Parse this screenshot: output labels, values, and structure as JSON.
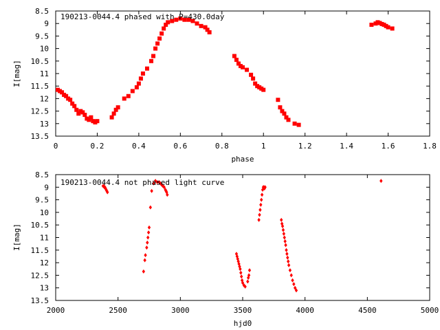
{
  "chart_data": [
    {
      "type": "scatter",
      "title": "190213-0044.4 phased with P=430.0day",
      "xlabel": "phase",
      "ylabel": "I[mag]",
      "xlim": [
        0,
        1.8
      ],
      "ylim": [
        13.5,
        8.5
      ],
      "y_inverted": true,
      "xticks": [
        "0",
        "0.2",
        "0.4",
        "0.6",
        "0.8",
        "1",
        "1.2",
        "1.4",
        "1.6",
        "1.8"
      ],
      "yticks": [
        "8.5",
        "9",
        "9.5",
        "10",
        "10.5",
        "11",
        "11.5",
        "12",
        "12.5",
        "13",
        "13.5"
      ],
      "xtick_values": [
        0,
        0.2,
        0.4,
        0.6,
        0.8,
        1.0,
        1.2,
        1.4,
        1.6,
        1.8
      ],
      "ytick_values": [
        8.5,
        9,
        9.5,
        10,
        10.5,
        11,
        11.5,
        12,
        12.5,
        13,
        13.5
      ],
      "marker_color": "#ff0000",
      "marker": "filled-square",
      "series": [
        {
          "x": [
            0.01,
            0.02,
            0.03,
            0.04,
            0.05,
            0.06,
            0.07,
            0.08,
            0.09,
            0.1,
            0.11,
            0.12,
            0.13,
            0.14,
            0.15,
            0.16,
            0.17,
            0.18,
            0.19,
            0.2,
            0.27,
            0.28,
            0.29,
            0.3,
            0.33,
            0.35,
            0.37,
            0.39,
            0.4,
            0.41,
            0.42,
            0.44,
            0.46,
            0.47,
            0.48,
            0.49,
            0.5,
            0.51,
            0.52,
            0.53,
            0.54,
            0.56,
            0.58,
            0.6,
            0.62,
            0.64,
            0.66,
            0.68,
            0.7,
            0.72,
            0.73,
            0.74,
            0.86,
            0.87,
            0.88,
            0.89,
            0.9,
            0.92,
            0.94,
            0.95,
            0.96,
            0.97,
            0.98,
            0.99,
            1.0,
            1.07,
            1.08,
            1.09,
            1.1,
            1.11,
            1.12,
            1.15,
            1.17,
            1.52,
            1.54,
            1.55,
            1.56,
            1.57,
            1.58,
            1.59,
            1.6,
            1.62
          ],
          "y": [
            11.65,
            11.7,
            11.75,
            11.85,
            11.9,
            12.0,
            12.05,
            12.2,
            12.3,
            12.45,
            12.6,
            12.5,
            12.55,
            12.65,
            12.8,
            12.85,
            12.75,
            12.9,
            12.95,
            12.9,
            12.75,
            12.6,
            12.45,
            12.35,
            12.0,
            11.9,
            11.7,
            11.55,
            11.4,
            11.2,
            11.0,
            10.8,
            10.5,
            10.3,
            10.0,
            9.8,
            9.6,
            9.4,
            9.2,
            9.05,
            8.95,
            8.9,
            8.85,
            8.8,
            8.85,
            8.85,
            8.9,
            9.0,
            9.1,
            9.15,
            9.25,
            9.35,
            10.3,
            10.45,
            10.6,
            10.7,
            10.75,
            10.85,
            11.05,
            11.2,
            11.4,
            11.5,
            11.55,
            11.6,
            11.65,
            12.05,
            12.35,
            12.5,
            12.6,
            12.75,
            12.85,
            13.0,
            13.05,
            9.05,
            9.0,
            8.95,
            8.98,
            9.02,
            9.05,
            9.1,
            9.15,
            9.2
          ]
        }
      ]
    },
    {
      "type": "scatter",
      "title": "190213-0044.4 not phased light curve",
      "xlabel": "hjd0",
      "ylabel": "I[mag]",
      "xlim": [
        2000,
        5000
      ],
      "ylim": [
        13.5,
        8.5
      ],
      "y_inverted": true,
      "xticks": [
        "2000",
        "2500",
        "3000",
        "3500",
        "4000",
        "4500",
        "5000"
      ],
      "yticks": [
        "8.5",
        "9",
        "9.5",
        "10",
        "10.5",
        "11",
        "11.5",
        "12",
        "12.5",
        "13",
        "13.5"
      ],
      "xtick_values": [
        2000,
        2500,
        3000,
        3500,
        4000,
        4500,
        5000
      ],
      "ytick_values": [
        8.5,
        9,
        9.5,
        10,
        10.5,
        11,
        11.5,
        12,
        12.5,
        13,
        13.5
      ],
      "marker_color": "#ff0000",
      "marker": "filled-diamond",
      "series": [
        {
          "x": [
            2380,
            2385,
            2390,
            2395,
            2400,
            2405,
            2410,
            2415,
            2705,
            2715,
            2720,
            2730,
            2735,
            2740,
            2745,
            2750,
            2760,
            2770,
            2785,
            2800,
            2815,
            2830,
            2840,
            2850,
            2860,
            2870,
            2880,
            2885,
            2890,
            2895,
            3450,
            3455,
            3460,
            3465,
            3470,
            3475,
            3480,
            3485,
            3490,
            3495,
            3500,
            3510,
            3520,
            3540,
            3545,
            3550,
            3555,
            3630,
            3635,
            3640,
            3645,
            3650,
            3655,
            3660,
            3665,
            3670,
            3675,
            3680,
            3810,
            3815,
            3820,
            3825,
            3830,
            3835,
            3840,
            3845,
            3850,
            3855,
            3860,
            3865,
            3870,
            3880,
            3890,
            3900,
            3910,
            3920,
            3930,
            4610
          ],
          "y": [
            8.95,
            8.95,
            9.0,
            9.0,
            9.05,
            9.1,
            9.15,
            9.2,
            12.35,
            11.9,
            11.7,
            11.4,
            11.2,
            11.0,
            10.8,
            10.6,
            9.8,
            9.15,
            8.85,
            8.75,
            8.8,
            8.8,
            8.85,
            8.9,
            8.95,
            9.0,
            9.1,
            9.15,
            9.2,
            9.3,
            11.65,
            11.75,
            11.85,
            11.95,
            12.05,
            12.15,
            12.25,
            12.4,
            12.55,
            12.7,
            12.8,
            12.9,
            12.95,
            12.75,
            12.6,
            12.5,
            12.3,
            10.3,
            10.1,
            9.9,
            9.7,
            9.5,
            9.3,
            9.1,
            9.0,
            9.0,
            9.05,
            9.0,
            10.3,
            10.45,
            10.55,
            10.7,
            10.85,
            11.0,
            11.15,
            11.3,
            11.5,
            11.65,
            11.8,
            11.95,
            12.1,
            12.3,
            12.5,
            12.7,
            12.85,
            13.0,
            13.1,
            8.75
          ]
        }
      ]
    }
  ]
}
